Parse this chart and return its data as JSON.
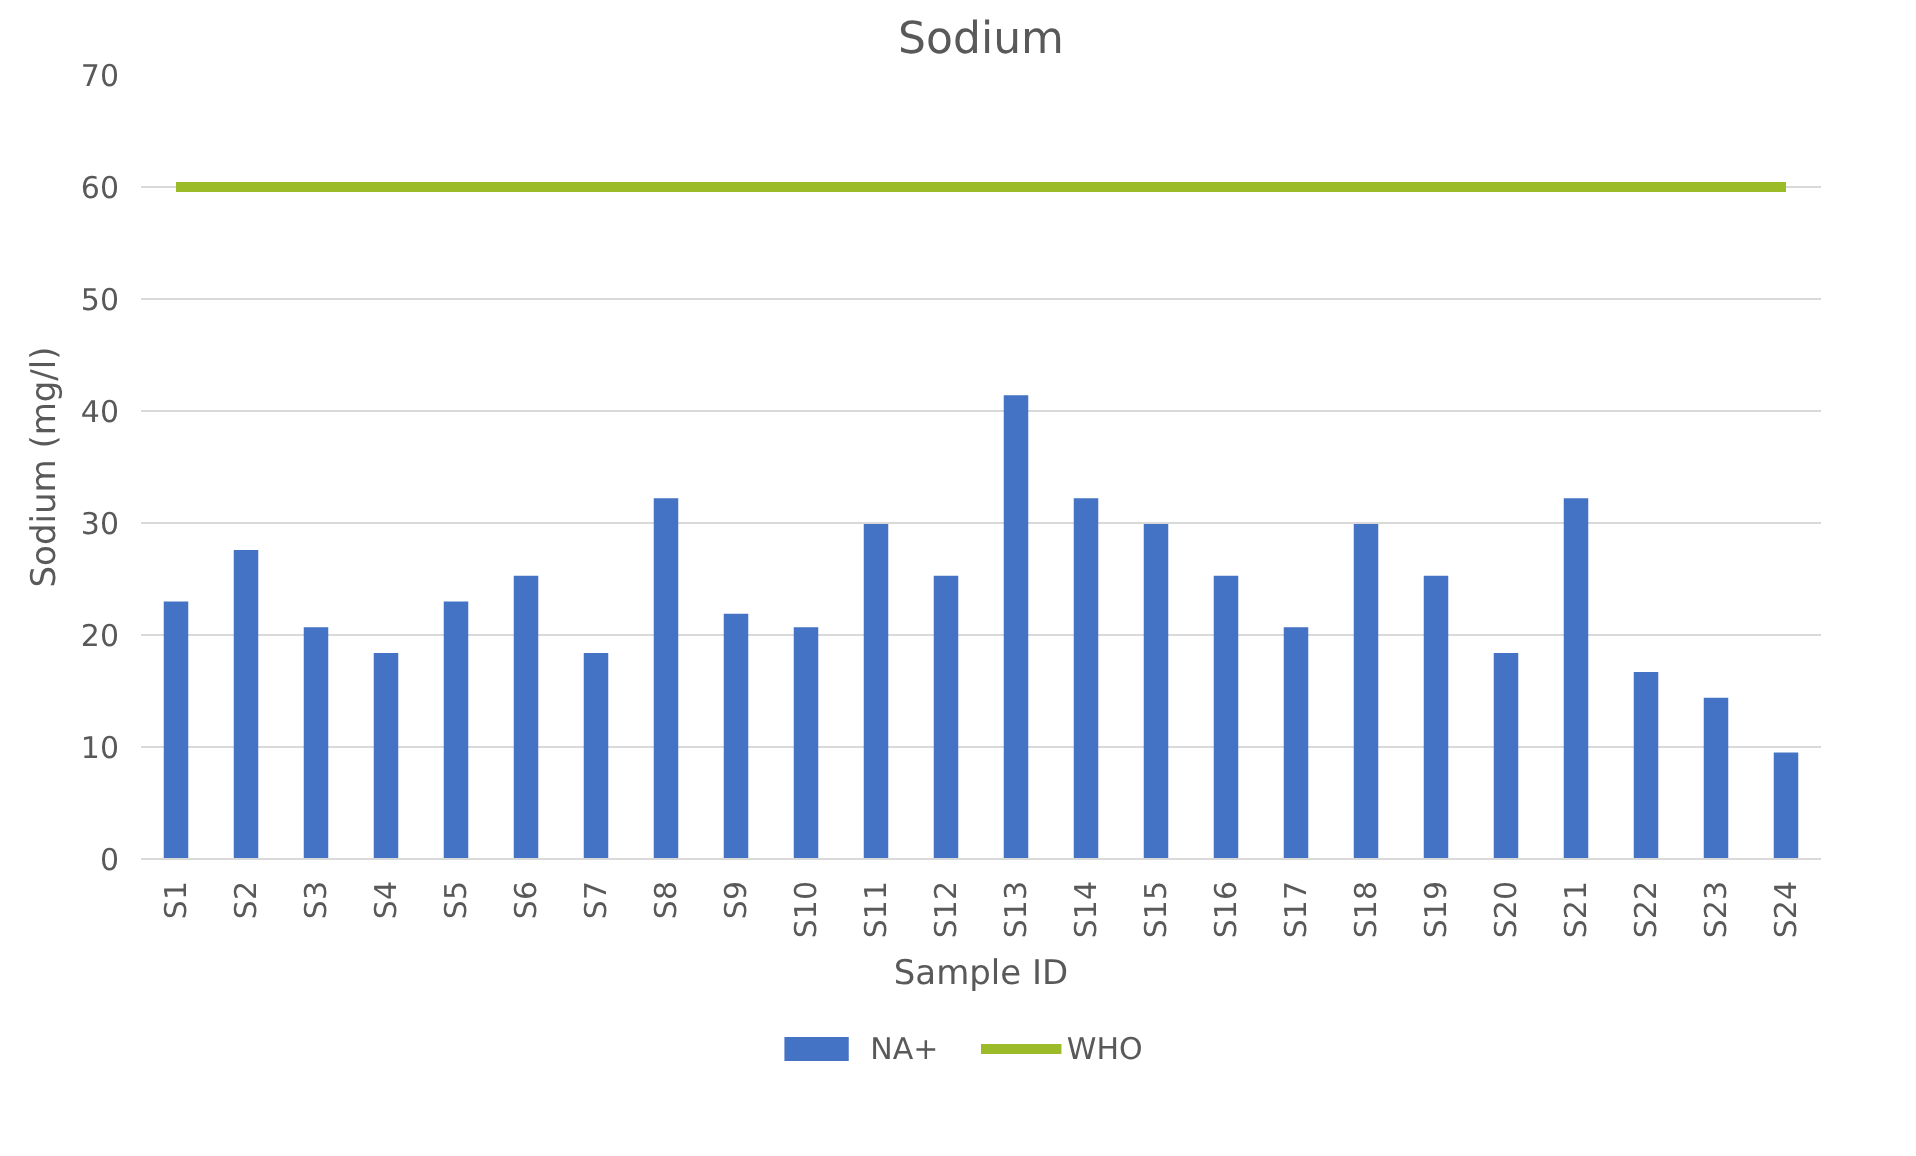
{
  "chart_data": {
    "type": "bar",
    "title": "Sodium",
    "xlabel": "Sample ID",
    "ylabel": "Sodium (mg/l)",
    "categories": [
      "S1",
      "S2",
      "S3",
      "S4",
      "S5",
      "S6",
      "S7",
      "S8",
      "S9",
      "S10",
      "S11",
      "S12",
      "S13",
      "S14",
      "S15",
      "S16",
      "S17",
      "S18",
      "S19",
      "S20",
      "S21",
      "S22",
      "S23",
      "S24"
    ],
    "series": [
      {
        "name": "NA+",
        "color": "#4472c4",
        "values": [
          23,
          27.6,
          20.7,
          18.4,
          23,
          25.3,
          18.4,
          32.2,
          21.9,
          20.7,
          29.9,
          25.3,
          41.4,
          32.2,
          29.9,
          25.3,
          20.7,
          29.9,
          25.3,
          18.4,
          32.2,
          16.7,
          14.4,
          9.5
        ]
      },
      {
        "name": "WHO",
        "type": "line",
        "color": "#9bbb29",
        "values": [
          60,
          60,
          60,
          60,
          60,
          60,
          60,
          60,
          60,
          60,
          60,
          60,
          60,
          60,
          60,
          60,
          60,
          60,
          60,
          60,
          60,
          60,
          60,
          60
        ]
      }
    ],
    "ylim": [
      0,
      70
    ],
    "yticks": [
      0,
      10,
      20,
      30,
      40,
      50,
      60,
      70
    ],
    "grid": "y",
    "legend": "bottom"
  }
}
